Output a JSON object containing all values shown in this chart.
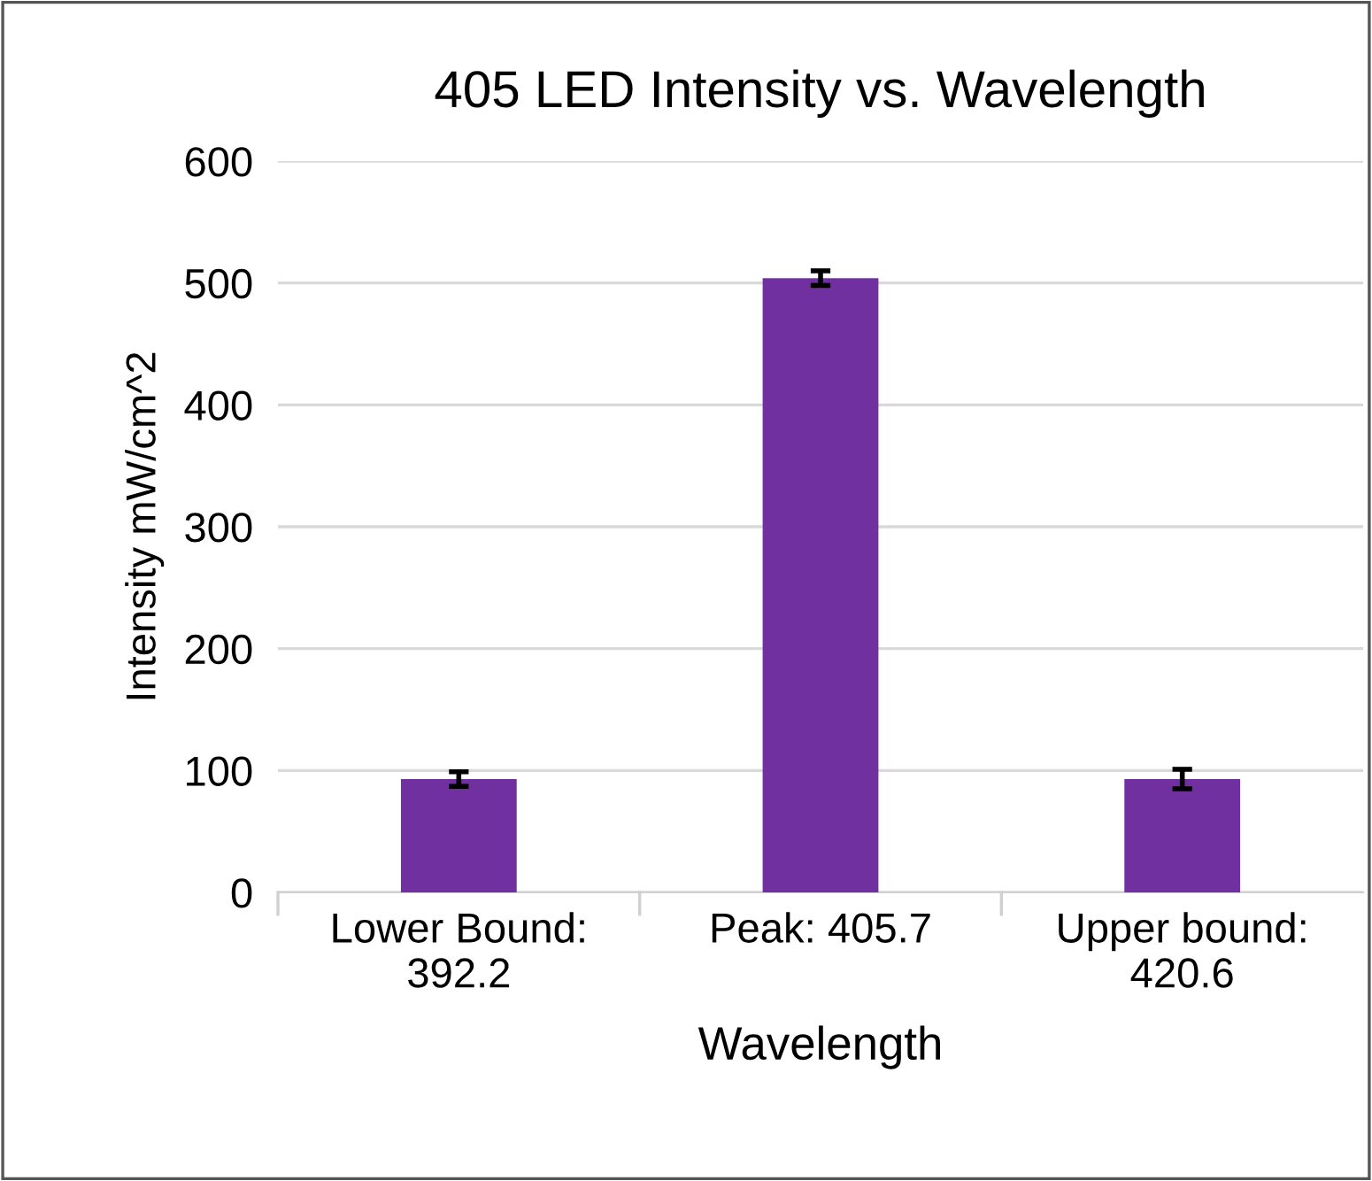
{
  "chart_data": {
    "type": "bar",
    "title": "405 LED Intensity vs. Wavelength",
    "xlabel": "Wavelength",
    "ylabel": "Intensity mW/cm^2",
    "categories": [
      "Lower Bound:\n392.2",
      "Peak: 405.7",
      "Upper bound:\n420.6"
    ],
    "values": [
      93,
      504,
      93
    ],
    "errors": [
      6,
      6,
      8
    ],
    "color": "#7030a0",
    "ylim": [
      0,
      600
    ],
    "yticks": [
      0,
      100,
      200,
      300,
      400,
      500,
      600
    ],
    "grid": "y"
  }
}
